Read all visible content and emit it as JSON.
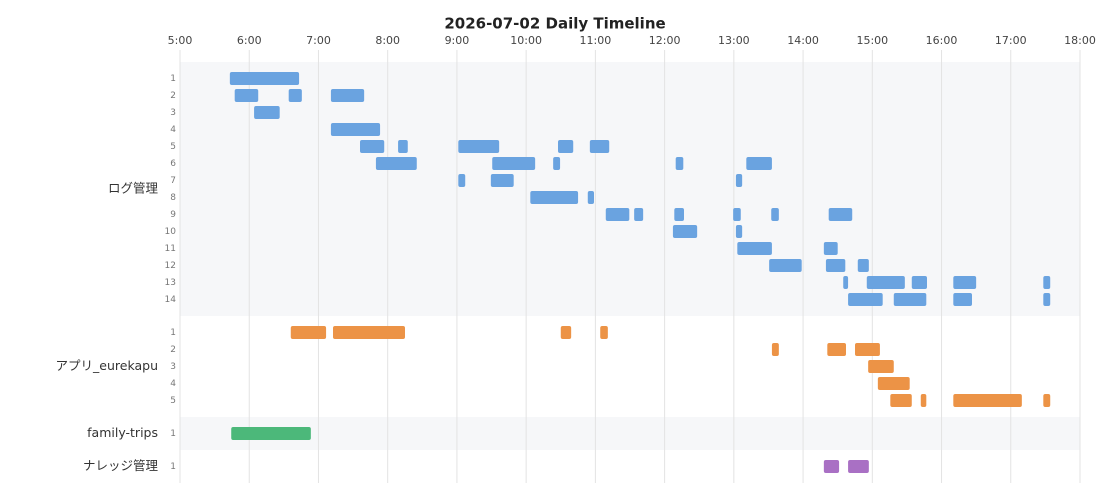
{
  "chart_data": {
    "type": "timeline",
    "title": "2026-07-02 Daily Timeline",
    "xlim": [
      5,
      18
    ],
    "xticks": [
      {
        "value": 5,
        "label": "5:00"
      },
      {
        "value": 6,
        "label": "6:00"
      },
      {
        "value": 7,
        "label": "7:00"
      },
      {
        "value": 8,
        "label": "8:00"
      },
      {
        "value": 9,
        "label": "9:00"
      },
      {
        "value": 10,
        "label": "10:00"
      },
      {
        "value": 11,
        "label": "11:00"
      },
      {
        "value": 12,
        "label": "12:00"
      },
      {
        "value": 13,
        "label": "13:00"
      },
      {
        "value": 14,
        "label": "14:00"
      },
      {
        "value": 15,
        "label": "15:00"
      },
      {
        "value": 16,
        "label": "16:00"
      },
      {
        "value": 17,
        "label": "17:00"
      },
      {
        "value": 18,
        "label": "18:00"
      }
    ],
    "grid": true,
    "groups": [
      {
        "name": "ログ管理",
        "color": "#6aa3e0",
        "rows": [
          {
            "label": "1",
            "bars": [
              [
                5.72,
                6.72
              ]
            ]
          },
          {
            "label": "2",
            "bars": [
              [
                5.79,
                6.13
              ],
              [
                6.57,
                6.76
              ],
              [
                7.18,
                7.66
              ]
            ]
          },
          {
            "label": "3",
            "bars": [
              [
                6.07,
                6.44
              ]
            ]
          },
          {
            "label": "4",
            "bars": [
              [
                7.18,
                7.89
              ]
            ]
          },
          {
            "label": "5",
            "bars": [
              [
                7.6,
                7.95
              ],
              [
                8.15,
                8.29
              ],
              [
                9.02,
                9.61
              ],
              [
                10.46,
                10.68
              ],
              [
                10.92,
                11.2
              ]
            ]
          },
          {
            "label": "6",
            "bars": [
              [
                7.83,
                8.42
              ],
              [
                9.51,
                10.13
              ],
              [
                10.39,
                10.49
              ],
              [
                12.16,
                12.27
              ],
              [
                13.18,
                13.55
              ]
            ]
          },
          {
            "label": "7",
            "bars": [
              [
                9.02,
                9.12
              ],
              [
                9.49,
                9.82
              ],
              [
                13.03,
                13.12
              ]
            ]
          },
          {
            "label": "8",
            "bars": [
              [
                10.06,
                10.75
              ],
              [
                10.89,
                10.98
              ]
            ]
          },
          {
            "label": "9",
            "bars": [
              [
                11.15,
                11.49
              ],
              [
                11.56,
                11.69
              ],
              [
                12.14,
                12.28
              ],
              [
                12.99,
                13.1
              ],
              [
                13.54,
                13.65
              ],
              [
                14.37,
                14.71
              ]
            ]
          },
          {
            "label": "10",
            "bars": [
              [
                12.12,
                12.47
              ],
              [
                13.03,
                13.12
              ]
            ]
          },
          {
            "label": "11",
            "bars": [
              [
                13.05,
                13.55
              ],
              [
                14.3,
                14.5
              ]
            ]
          },
          {
            "label": "12",
            "bars": [
              [
                13.51,
                13.98
              ],
              [
                14.33,
                14.61
              ],
              [
                14.79,
                14.95
              ]
            ]
          },
          {
            "label": "13",
            "bars": [
              [
                14.58,
                14.65
              ],
              [
                14.92,
                15.47
              ],
              [
                15.57,
                15.79
              ],
              [
                16.17,
                16.5
              ],
              [
                17.47,
                17.57
              ]
            ]
          },
          {
            "label": "14",
            "bars": [
              [
                14.65,
                15.15
              ],
              [
                15.31,
                15.78
              ],
              [
                16.17,
                16.44
              ],
              [
                17.47,
                17.57
              ]
            ]
          }
        ]
      },
      {
        "name": "アプリ_eurekapu",
        "color": "#ec9346",
        "rows": [
          {
            "label": "1",
            "bars": [
              [
                6.6,
                7.11
              ],
              [
                7.21,
                8.25
              ],
              [
                10.5,
                10.65
              ],
              [
                11.07,
                11.18
              ]
            ]
          },
          {
            "label": "2",
            "bars": [
              [
                13.55,
                13.65
              ],
              [
                14.35,
                14.62
              ],
              [
                14.75,
                15.11
              ]
            ]
          },
          {
            "label": "3",
            "bars": [
              [
                14.94,
                15.31
              ]
            ]
          },
          {
            "label": "4",
            "bars": [
              [
                15.08,
                15.54
              ]
            ]
          },
          {
            "label": "5",
            "bars": [
              [
                15.26,
                15.57
              ],
              [
                15.7,
                15.78
              ],
              [
                16.17,
                17.16
              ],
              [
                17.47,
                17.57
              ]
            ]
          }
        ]
      },
      {
        "name": "family-trips",
        "color": "#4cb87a",
        "rows": [
          {
            "label": "1",
            "bars": [
              [
                5.74,
                6.89
              ]
            ]
          }
        ]
      },
      {
        "name": "ナレッジ管理",
        "color": "#a970c4",
        "rows": [
          {
            "label": "1",
            "bars": [
              [
                14.3,
                14.52
              ],
              [
                14.65,
                14.95
              ]
            ]
          }
        ]
      }
    ]
  }
}
